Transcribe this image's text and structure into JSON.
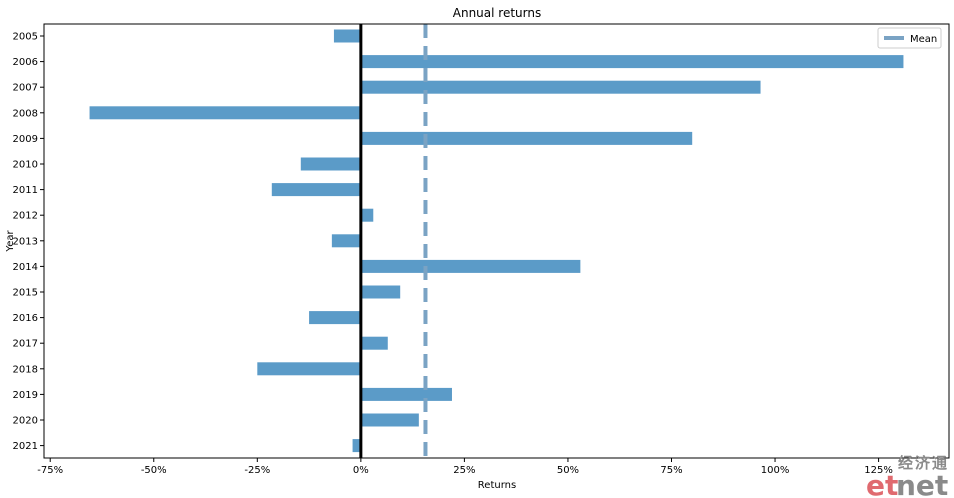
{
  "chart_data": {
    "type": "bar",
    "orientation": "horizontal",
    "title": "Annual returns",
    "xlabel": "Returns",
    "ylabel": "Year",
    "categories": [
      "2005",
      "2006",
      "2007",
      "2008",
      "2009",
      "2010",
      "2011",
      "2012",
      "2013",
      "2014",
      "2015",
      "2016",
      "2017",
      "2018",
      "2019",
      "2020",
      "2021"
    ],
    "values": [
      -6.5,
      131,
      96.5,
      -65.5,
      80,
      -14.5,
      -21.5,
      3,
      -7,
      53,
      9.5,
      -12.5,
      6.5,
      -25,
      22,
      14,
      -2
    ],
    "xlim": [
      -76.5,
      142
    ],
    "xticks": [
      -75,
      -50,
      -25,
      0,
      25,
      50,
      75,
      100,
      125
    ],
    "xtick_labels": [
      "-75%",
      "-50%",
      "-25%",
      "0%",
      "25%",
      "50%",
      "75%",
      "100%",
      "125%"
    ],
    "mean": 15.6,
    "legend": {
      "label": "Mean",
      "placement": "top-right"
    },
    "bar_color": "#5b9bc8",
    "mean_line_color": "#7aa3c4",
    "zero_line_color": "#000000",
    "grid": false
  },
  "watermark": {
    "cn": "经济通",
    "et": "et",
    "net": "net"
  }
}
